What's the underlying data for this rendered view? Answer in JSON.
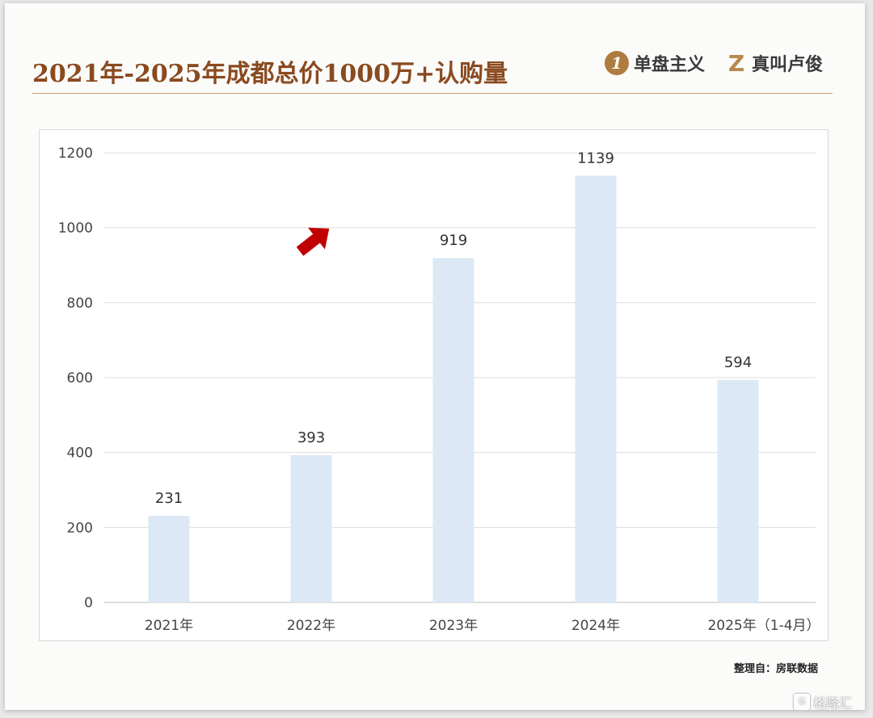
{
  "header": {
    "title": "2021年-2025年成都总价1000万+认购量",
    "logo1_badge": "1",
    "logo1_text": "单盘主义",
    "logo2_mark": "Z",
    "logo2_text": "真叫卢俊"
  },
  "footer": {
    "source": "整理自：房联数据",
    "watermark": "格隆汇"
  },
  "icons": {
    "arrow": "red-arrow-icon",
    "logo1": "single-badge-icon",
    "logo2": "z-mark-icon",
    "watermark": "gelonghui-logo-icon"
  },
  "colors": {
    "bar": "#dce8f5",
    "title": "#8a4a1f",
    "rule": "#c9a46a",
    "arrow": "#c00000",
    "grid": "#dddddd"
  },
  "chart_data": {
    "type": "bar",
    "title": "2021年-2025年成都总价1000万+认购量",
    "categories": [
      "2021年",
      "2022年",
      "2023年",
      "2024年",
      "2025年（1-4月）"
    ],
    "values": [
      231,
      393,
      919,
      1139,
      594
    ],
    "data_labels": [
      "231",
      "393",
      "919",
      "1139",
      "594"
    ],
    "yticks": [
      0,
      200,
      400,
      600,
      800,
      1000,
      1200
    ],
    "ylim": [
      0,
      1200
    ],
    "grid": true,
    "legend": "none",
    "xlabel": "",
    "ylabel": ""
  }
}
